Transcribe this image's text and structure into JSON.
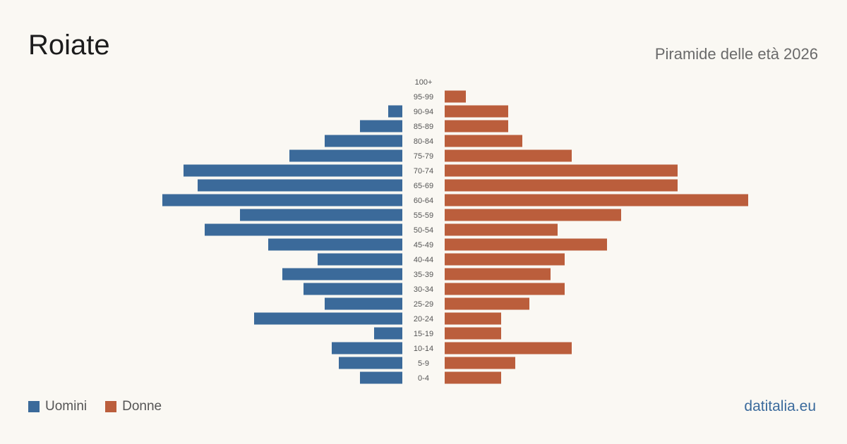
{
  "header": {
    "title": "Roiate",
    "subtitle": "Piramide delle età 2026"
  },
  "legend": {
    "items": [
      {
        "label": "Uomini",
        "color": "#3b6a9a"
      },
      {
        "label": "Donne",
        "color": "#bb5e3c"
      }
    ]
  },
  "footer": {
    "brand": "datitalia.eu"
  },
  "chart_data": {
    "type": "bar",
    "orientation": "horizontal-pyramid",
    "categories": [
      "100+",
      "95-99",
      "90-94",
      "85-89",
      "80-84",
      "75-79",
      "70-74",
      "65-69",
      "60-64",
      "55-59",
      "50-54",
      "45-49",
      "40-44",
      "35-39",
      "30-34",
      "25-29",
      "20-24",
      "15-19",
      "10-14",
      "5-9",
      "0-4"
    ],
    "series": [
      {
        "name": "Uomini",
        "color": "#3b6a9a",
        "values": [
          0,
          0,
          2,
          6,
          11,
          16,
          31,
          29,
          34,
          23,
          28,
          19,
          12,
          17,
          14,
          11,
          21,
          4,
          10,
          9,
          6
        ]
      },
      {
        "name": "Donne",
        "color": "#bb5e3c",
        "values": [
          0,
          3,
          9,
          9,
          11,
          18,
          33,
          33,
          43,
          25,
          16,
          23,
          17,
          15,
          17,
          12,
          8,
          8,
          18,
          10,
          8
        ]
      }
    ],
    "legend_position": "bottom-left",
    "grid": false
  }
}
